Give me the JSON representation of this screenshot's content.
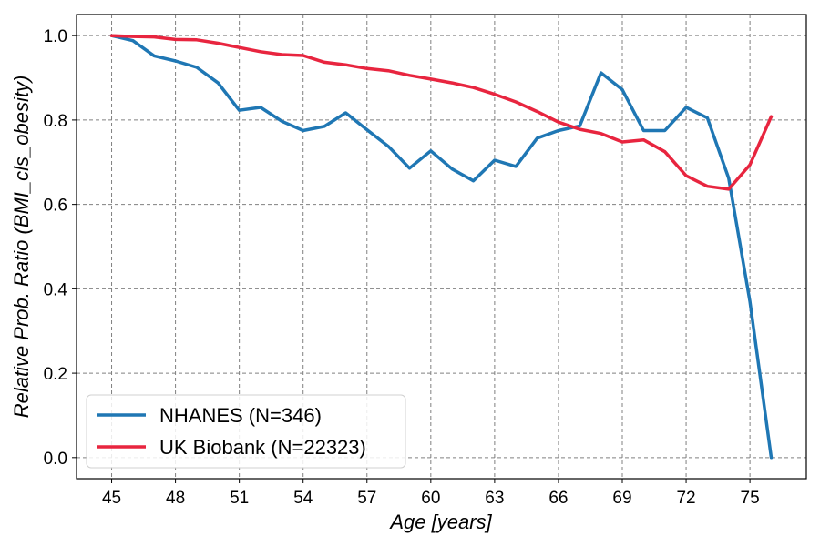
{
  "chart_data": {
    "type": "line",
    "title": "",
    "xlabel": "Age [years]",
    "ylabel": "Relative Prob. Ratio (BMI_cls_obesity)",
    "xlim": [
      43.35,
      77.65
    ],
    "ylim": [
      -0.05,
      1.05
    ],
    "x_ticks": [
      "45",
      "48",
      "51",
      "54",
      "57",
      "60",
      "63",
      "66",
      "69",
      "72",
      "75"
    ],
    "y_ticks": [
      "0.0",
      "0.2",
      "0.4",
      "0.6",
      "0.8",
      "1.0"
    ],
    "grid": true,
    "legend_position": "lower-left",
    "series": [
      {
        "name": "NHANES (N=346)",
        "color": "#1f77b4",
        "x": [
          45,
          46,
          47,
          48,
          49,
          50,
          51,
          52,
          53,
          54,
          55,
          56,
          57,
          58,
          59,
          60,
          61,
          62,
          63,
          64,
          65,
          66,
          67,
          68,
          69,
          70,
          71,
          72,
          73,
          74,
          75,
          76
        ],
        "y": [
          1.0,
          0.988,
          0.952,
          0.94,
          0.925,
          0.888,
          0.823,
          0.83,
          0.797,
          0.775,
          0.785,
          0.817,
          0.777,
          0.738,
          0.686,
          0.727,
          0.684,
          0.656,
          0.705,
          0.69,
          0.757,
          0.775,
          0.786,
          0.912,
          0.872,
          0.775,
          0.775,
          0.83,
          0.805,
          0.662,
          0.37,
          0.0
        ]
      },
      {
        "name": "UK Biobank (N=22323)",
        "color": "#e8253f",
        "x": [
          45,
          46,
          47,
          48,
          49,
          50,
          51,
          52,
          53,
          54,
          55,
          56,
          57,
          58,
          59,
          60,
          61,
          62,
          63,
          64,
          65,
          66,
          67,
          68,
          69,
          70,
          71,
          72,
          73,
          74,
          75,
          76
        ],
        "y": [
          1.0,
          0.998,
          0.997,
          0.991,
          0.99,
          0.982,
          0.972,
          0.962,
          0.955,
          0.953,
          0.937,
          0.931,
          0.922,
          0.917,
          0.906,
          0.897,
          0.888,
          0.877,
          0.861,
          0.843,
          0.82,
          0.795,
          0.778,
          0.768,
          0.748,
          0.753,
          0.725,
          0.668,
          0.643,
          0.636,
          0.694,
          0.808
        ]
      }
    ]
  }
}
